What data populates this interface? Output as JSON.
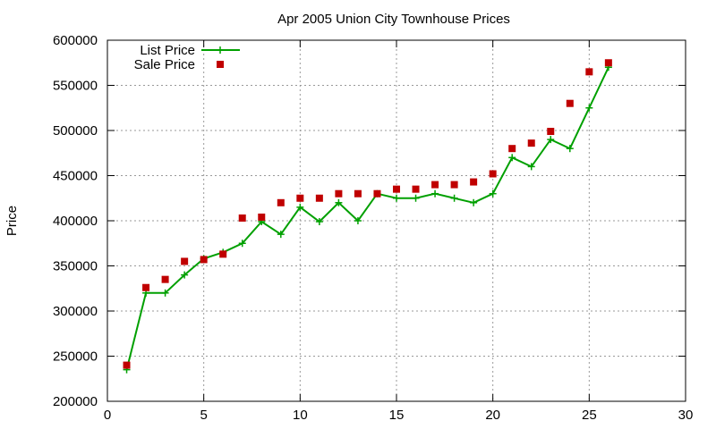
{
  "chart_data": {
    "type": "line",
    "title": "Apr 2005 Union City Townhouse Prices",
    "xlabel": "",
    "ylabel": "Price",
    "xlim": [
      0,
      30
    ],
    "ylim": [
      200000,
      600000
    ],
    "xticks": [
      0,
      5,
      10,
      15,
      20,
      25,
      30
    ],
    "yticks": [
      200000,
      250000,
      300000,
      350000,
      400000,
      450000,
      500000,
      550000,
      600000
    ],
    "grid": true,
    "legend_position": "top-left",
    "series": [
      {
        "name": "List Price",
        "style": "line-plus",
        "color": "#00a000",
        "x": [
          1,
          2,
          3,
          4,
          5,
          6,
          7,
          8,
          9,
          10,
          11,
          12,
          13,
          14,
          15,
          16,
          17,
          18,
          19,
          20,
          21,
          22,
          23,
          24,
          25,
          26
        ],
        "values": [
          235000,
          320000,
          320000,
          340000,
          358000,
          365000,
          375000,
          399000,
          385000,
          415000,
          399000,
          420000,
          400000,
          430000,
          425000,
          425000,
          430000,
          425000,
          420000,
          430000,
          470000,
          460000,
          490000,
          480000,
          525000,
          570000
        ]
      },
      {
        "name": "Sale Price",
        "style": "square-marker",
        "color": "#c00000",
        "x": [
          1,
          2,
          3,
          4,
          5,
          6,
          7,
          8,
          9,
          10,
          11,
          12,
          13,
          14,
          15,
          16,
          17,
          18,
          19,
          20,
          21,
          22,
          23,
          24,
          25,
          26
        ],
        "values": [
          240000,
          326000,
          335000,
          355000,
          357000,
          363000,
          403000,
          404000,
          420000,
          425000,
          425000,
          430000,
          430000,
          430000,
          435000,
          435000,
          440000,
          440000,
          443000,
          452000,
          480000,
          486000,
          499000,
          530000,
          565000,
          575000
        ]
      }
    ]
  }
}
